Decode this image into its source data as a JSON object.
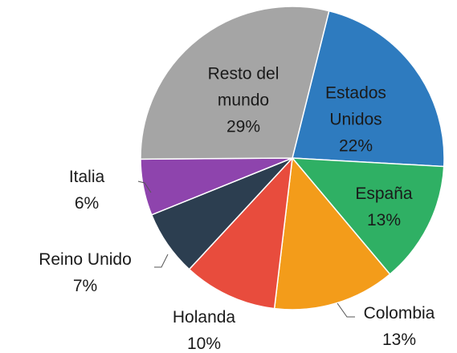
{
  "chart_data": {
    "type": "pie",
    "categories": [
      "Estados Unidos",
      "España",
      "Colombia",
      "Holanda",
      "Reino Unido",
      "Italia",
      "Resto del mundo"
    ],
    "values": [
      22,
      13,
      13,
      10,
      7,
      6,
      29
    ],
    "value_labels": [
      "22%",
      "13%",
      "13%",
      "10%",
      "7%",
      "6%",
      "29%"
    ],
    "colors": [
      "#2e7bbf",
      "#2fb064",
      "#f39c1a",
      "#e84c3d",
      "#2c3e50",
      "#8e44ad",
      "#a5a5a5"
    ]
  }
}
